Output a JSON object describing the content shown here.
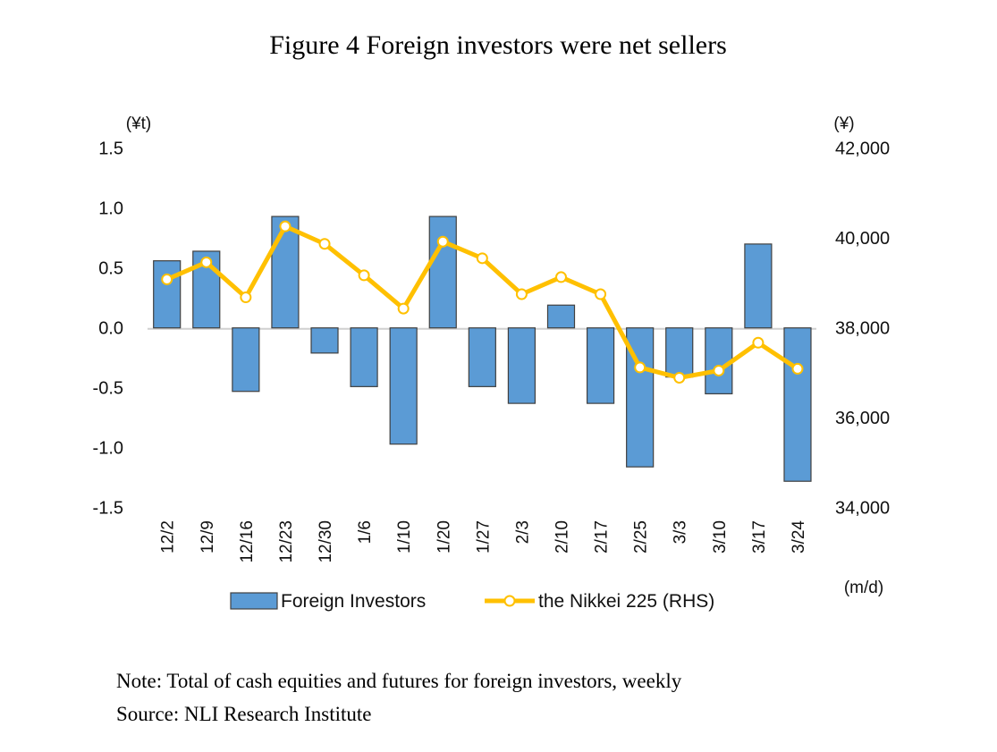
{
  "chart_data": {
    "type": "bar+line",
    "title": "Figure 4 Foreign investors were net sellers",
    "categories": [
      "12/2",
      "12/9",
      "12/16",
      "12/23",
      "12/30",
      "1/6",
      "1/10",
      "1/20",
      "1/27",
      "2/3",
      "2/10",
      "2/17",
      "2/25",
      "3/3",
      "3/10",
      "3/17",
      "3/24"
    ],
    "series": [
      {
        "name": "Foreign Investors",
        "type": "bar",
        "axis": "left",
        "color": "#5B9BD5",
        "values": [
          0.56,
          0.64,
          -0.53,
          0.93,
          -0.21,
          -0.49,
          -0.97,
          0.93,
          -0.49,
          -0.63,
          0.19,
          -0.63,
          -1.16,
          -0.41,
          -0.55,
          0.7,
          -1.28
        ]
      },
      {
        "name": "the Nikkei 225 (RHS)",
        "type": "line",
        "axis": "right",
        "color": "#FFC000",
        "values": [
          39080,
          39460,
          38680,
          40260,
          39870,
          39170,
          38430,
          39920,
          39550,
          38750,
          39130,
          38750,
          37120,
          36890,
          37050,
          37670,
          37090
        ]
      }
    ],
    "left_axis": {
      "unit": "(¥t)",
      "ylim": [
        -1.5,
        1.5
      ],
      "ticks": [
        "1.5",
        "1.0",
        "0.5",
        "0.0",
        "-0.5",
        "-1.0",
        "-1.5"
      ]
    },
    "right_axis": {
      "unit": "(¥)",
      "ylim": [
        34000,
        42000
      ],
      "ticks": [
        "42,000",
        "40,000",
        "38,000",
        "36,000",
        "34,000"
      ]
    },
    "x_unit": "(m/d)",
    "legend": "bottom",
    "grid": false
  },
  "notes": {
    "note": "Note: Total of cash equities and futures for foreign investors, weekly",
    "source": "Source: NLI Research Institute"
  }
}
